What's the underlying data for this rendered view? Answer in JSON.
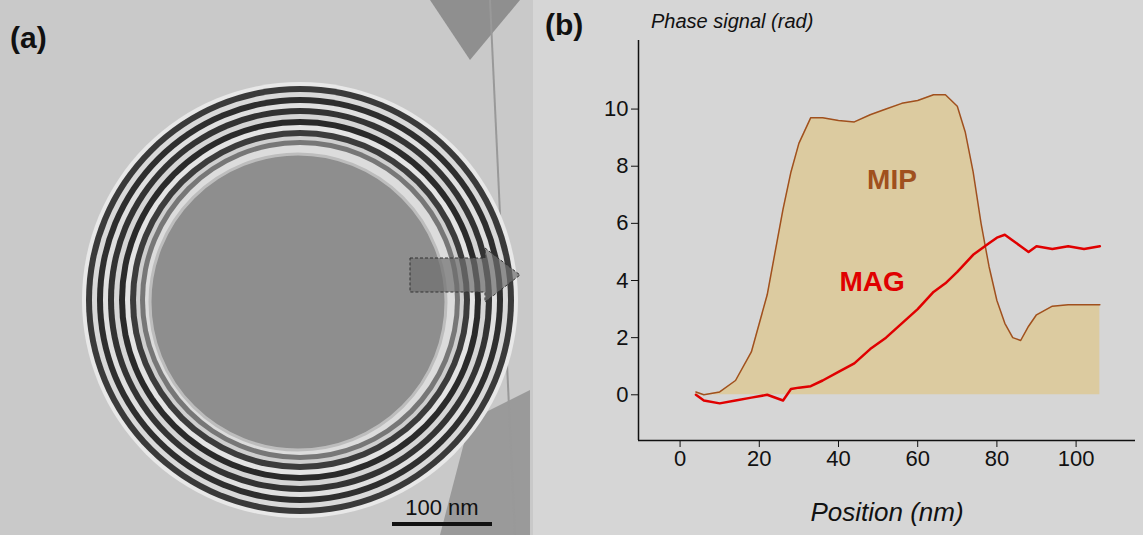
{
  "panels": [
    {
      "label": "(a)",
      "scale_bar": "100 nm"
    },
    {
      "label": "(b)"
    }
  ],
  "chart_data": {
    "type": "line",
    "y_label": "Phase signal (rad)",
    "x_label": "Position (nm)",
    "x": [
      4,
      6,
      10,
      14,
      18,
      22,
      26,
      28,
      30,
      33,
      36,
      40,
      44,
      48,
      52,
      56,
      60,
      64,
      67,
      70,
      72,
      74,
      76,
      78,
      80,
      82,
      84,
      86,
      88,
      90,
      94,
      98,
      102,
      106
    ],
    "series": [
      {
        "name": "MIP",
        "type": "area",
        "color": "#a0501e",
        "values": [
          0.1,
          0,
          0.1,
          0.5,
          1.5,
          3.5,
          6.5,
          7.8,
          8.8,
          9.7,
          9.7,
          9.6,
          9.55,
          9.8,
          10.0,
          10.2,
          10.3,
          10.5,
          10.5,
          10.1,
          9.2,
          7.8,
          6.0,
          4.5,
          3.3,
          2.5,
          2.0,
          1.9,
          2.4,
          2.8,
          3.1,
          3.15,
          3.15,
          3.15
        ]
      },
      {
        "name": "MAG",
        "type": "line",
        "color": "#e00000",
        "values": [
          0,
          -0.2,
          -0.3,
          -0.2,
          -0.1,
          0,
          -0.2,
          0.2,
          0.25,
          0.3,
          0.5,
          0.8,
          1.1,
          1.6,
          2.0,
          2.5,
          3.0,
          3.6,
          3.9,
          4.3,
          4.6,
          4.9,
          5.1,
          5.3,
          5.5,
          5.6,
          5.4,
          5.2,
          5.0,
          5.2,
          5.1,
          5.2,
          5.1,
          5.2
        ]
      }
    ],
    "annotations": [
      {
        "text": "MIP",
        "x": 53.5,
        "y": 7.5
      },
      {
        "text": "MAG",
        "x": 48.5,
        "y": 3.95
      }
    ],
    "xlim": [
      -10.5,
      115
    ],
    "xticks": [
      0,
      20,
      40,
      60,
      80,
      100
    ],
    "ylim": [
      -1.6,
      12.4
    ],
    "yticks": [
      0,
      2,
      4,
      6,
      8,
      10
    ],
    "grid": false
  }
}
